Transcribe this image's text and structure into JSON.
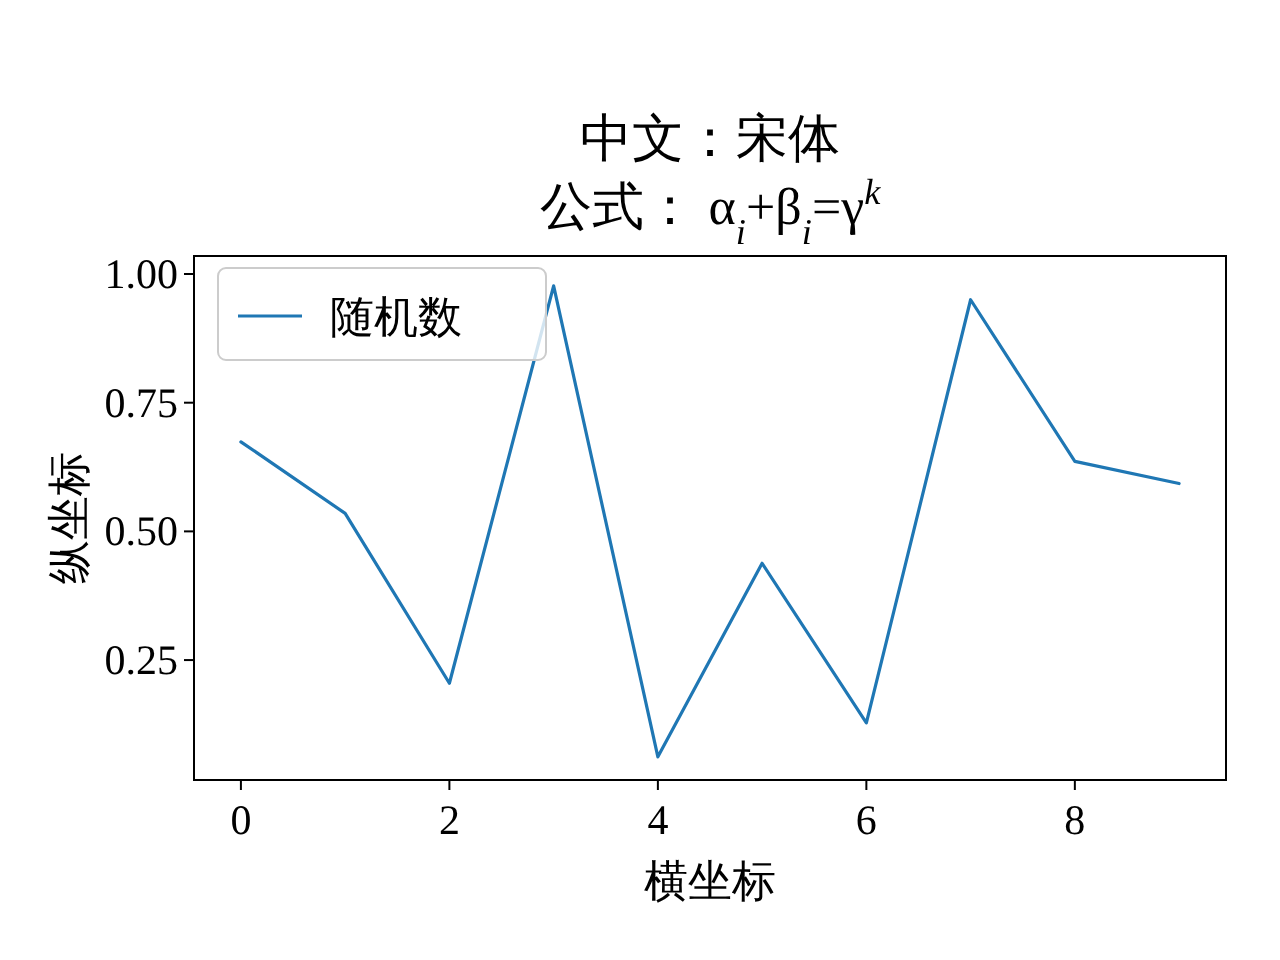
{
  "chart_data": {
    "type": "line",
    "title": [
      "中文：宋体",
      "公式：  α$_{i}$+β$_{i}$=γ$^{k}$"
    ],
    "xlabel": "横坐标",
    "ylabel": "纵坐标",
    "x": [
      0,
      1,
      2,
      3,
      4,
      5,
      6,
      7,
      8,
      9
    ],
    "series": [
      {
        "name": "随机数",
        "color": "#1f77b4",
        "values": [
          0.674,
          0.535,
          0.205,
          0.977,
          0.062,
          0.438,
          0.128,
          0.95,
          0.636,
          0.593
        ]
      }
    ],
    "xlim": [
      -0.45,
      9.45
    ],
    "ylim": [
      0.017,
      1.035
    ],
    "xticks": [
      0,
      2,
      4,
      6,
      8
    ],
    "yticks": [
      0.25,
      {
        "value": 0.5,
        "label": "0.50"
      },
      {
        "value": 0.75,
        "label": "0.75"
      },
      {
        "value": 1.0,
        "label": "1.00"
      }
    ],
    "grid": false,
    "legend": "top left"
  }
}
